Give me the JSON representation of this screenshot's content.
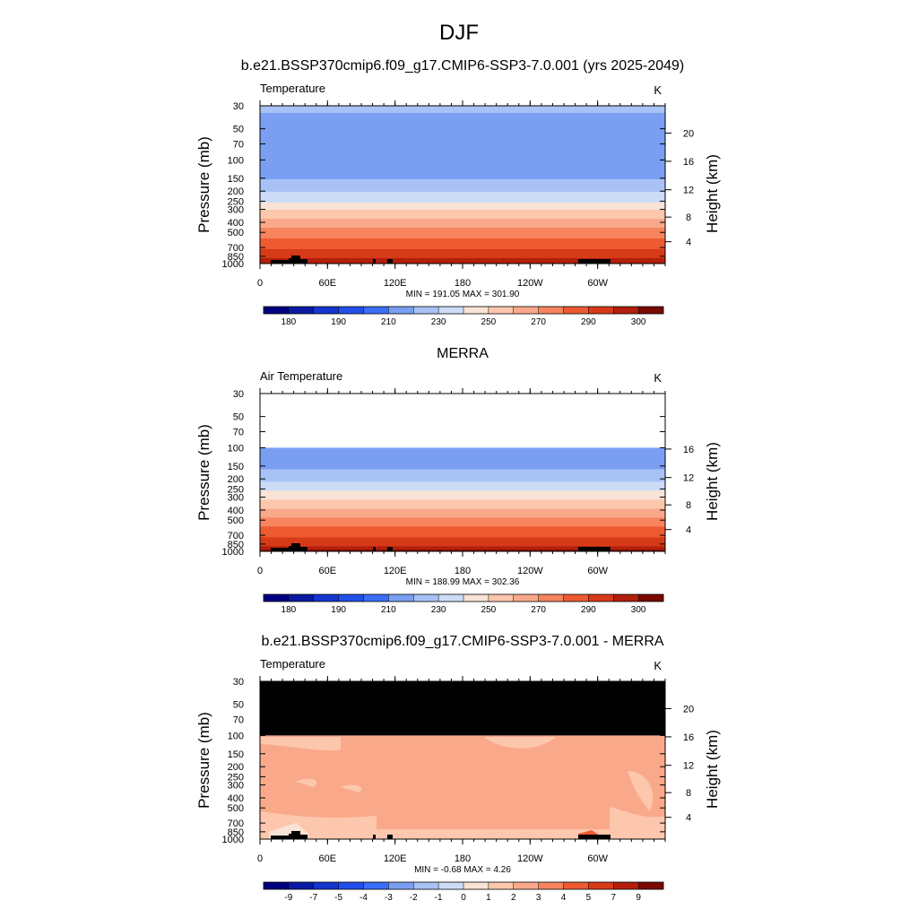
{
  "title": "DJF",
  "panels_meta": {
    "yaxis_left_label": "Pressure (mb)",
    "yaxis_right_label": "Height (km)"
  },
  "chart_data": [
    {
      "type": "heatmap",
      "title": "b.e21.BSSP370cmip6.f09_g17.CMIP6-SSP3-7.0.001 (yrs 2025-2049)",
      "left_label": "Temperature",
      "units": "K",
      "x_ticks": [
        "0",
        "60E",
        "120E",
        "180",
        "120W",
        "60W"
      ],
      "y_ticks_pressure": [
        "30",
        "50",
        "70",
        "100",
        "150",
        "200",
        "250",
        "300",
        "400",
        "500",
        "700",
        "850",
        "1000"
      ],
      "y_ticks_height": [
        "20",
        "16",
        "12",
        "8",
        "4"
      ],
      "ylim_pressure": [
        1000,
        30
      ],
      "min_max_text": "MIN = 191.05  MAX = 301.90",
      "min": 191.05,
      "max": 301.9,
      "profile_levels": [
        30,
        50,
        70,
        100,
        150,
        200,
        250,
        300,
        400,
        500,
        700,
        850,
        1000
      ],
      "profile_values": [
        212,
        205,
        202,
        202,
        210,
        220,
        230,
        240,
        255,
        265,
        280,
        288,
        296
      ],
      "colorbar": {
        "labels": [
          "180",
          "190",
          "210",
          "230",
          "250",
          "270",
          "290",
          "300"
        ],
        "colors": [
          "#00007f",
          "#0a1aa3",
          "#1535cf",
          "#214fe9",
          "#3a6ef6",
          "#7a9ff2",
          "#a9c2f5",
          "#cddcf6",
          "#f8e3d6",
          "#fcc7ad",
          "#f9a98a",
          "#f6845f",
          "#ee5a31",
          "#d73a18",
          "#b21f0c",
          "#7a0a00"
        ]
      }
    },
    {
      "type": "heatmap",
      "title": "MERRA",
      "left_label": "Air Temperature",
      "units": "K",
      "x_ticks": [
        "0",
        "60E",
        "120E",
        "180",
        "120W",
        "60W"
      ],
      "y_ticks_pressure": [
        "30",
        "50",
        "70",
        "100",
        "150",
        "200",
        "250",
        "300",
        "400",
        "500",
        "700",
        "850",
        "1000"
      ],
      "y_ticks_height": [
        "16",
        "12",
        "8",
        "4"
      ],
      "ylim_pressure": [
        1000,
        30
      ],
      "min_max_text": "MIN = 188.99  MAX = 302.36",
      "min": 188.99,
      "max": 302.36,
      "data_top_pressure": 100,
      "profile_levels": [
        100,
        150,
        200,
        250,
        300,
        400,
        500,
        700,
        850,
        1000
      ],
      "profile_values": [
        200,
        208,
        218,
        228,
        238,
        253,
        264,
        279,
        288,
        297
      ],
      "colorbar": {
        "labels": [
          "180",
          "190",
          "210",
          "230",
          "250",
          "270",
          "290",
          "300"
        ],
        "colors": [
          "#00007f",
          "#0a1aa3",
          "#1535cf",
          "#214fe9",
          "#3a6ef6",
          "#7a9ff2",
          "#a9c2f5",
          "#cddcf6",
          "#f8e3d6",
          "#fcc7ad",
          "#f9a98a",
          "#f6845f",
          "#ee5a31",
          "#d73a18",
          "#b21f0c",
          "#7a0a00"
        ]
      }
    },
    {
      "type": "heatmap",
      "title": "b.e21.BSSP370cmip6.f09_g17.CMIP6-SSP3-7.0.001 - MERRA",
      "left_label": "Temperature",
      "units": "K",
      "x_ticks": [
        "0",
        "60E",
        "120E",
        "180",
        "120W",
        "60W"
      ],
      "y_ticks_pressure": [
        "30",
        "50",
        "70",
        "100",
        "150",
        "200",
        "250",
        "300",
        "400",
        "500",
        "700",
        "850",
        "1000"
      ],
      "y_ticks_height": [
        "20",
        "16",
        "12",
        "8",
        "4"
      ],
      "ylim_pressure": [
        1000,
        30
      ],
      "min_max_text": "MIN =  -0.68  MAX =   4.26",
      "min": -0.68,
      "max": 4.26,
      "no_data_above_pressure": 100,
      "colorbar": {
        "labels": [
          "-9",
          "-7",
          "-5",
          "-4",
          "-3",
          "-2",
          "-1",
          "0",
          "1",
          "2",
          "3",
          "4",
          "5",
          "7",
          "9"
        ],
        "colors": [
          "#00007f",
          "#0a1aa3",
          "#1535cf",
          "#214fe9",
          "#3a6ef6",
          "#7a9ff2",
          "#a9c2f5",
          "#cddcf6",
          "#f8e3d6",
          "#fcc7ad",
          "#f9a98a",
          "#f6845f",
          "#ee5a31",
          "#d73a18",
          "#b21f0c",
          "#7a0a00"
        ]
      }
    }
  ]
}
